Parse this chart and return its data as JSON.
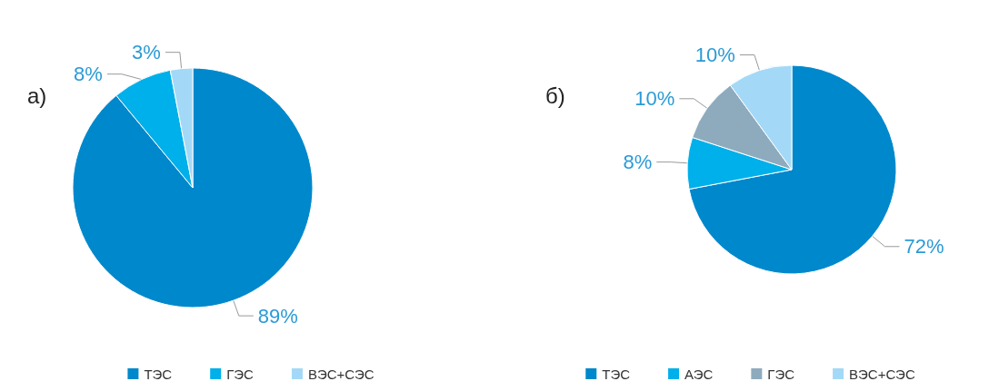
{
  "chart_data": [
    {
      "type": "pie",
      "title": "а)",
      "categories": [
        "ТЭС",
        "ГЭС",
        "ВЭС+СЭС"
      ],
      "values": [
        89,
        8,
        3
      ],
      "colors": [
        "#0088cc",
        "#00b0ea",
        "#a3d9f7"
      ],
      "value_labels": [
        "89%",
        "8%",
        "3%"
      ],
      "legend": "bottom"
    },
    {
      "type": "pie",
      "title": "б)",
      "categories": [
        "ТЭС",
        "АЭС",
        "ГЭС",
        "ВЭС+СЭС"
      ],
      "values": [
        72,
        8,
        10,
        10
      ],
      "colors": [
        "#0088cc",
        "#00b0ea",
        "#8eabbe",
        "#a3d9f7"
      ],
      "value_labels": [
        "72%",
        "8%",
        "10%",
        "10%"
      ],
      "legend": "bottom"
    }
  ]
}
